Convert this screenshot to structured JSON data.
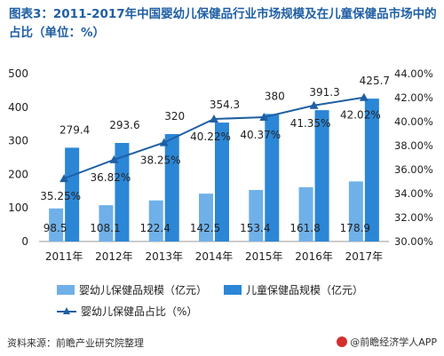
{
  "title": "图表3：2011-2017年中国婴幼儿保健品行业市场规模及在儿童保健品市场中的占比（单位：%）",
  "source": "资料来源：前瞻产业研究院整理",
  "credit": "@前瞻经济学人APP",
  "chart_data": {
    "type": "bar",
    "categories": [
      "2011年",
      "2012年",
      "2013年",
      "2014年",
      "2015年",
      "2016年",
      "2017年"
    ],
    "series": [
      {
        "name": "婴幼儿保健品规模（亿元）",
        "type": "bar",
        "axis": "left",
        "color": "#6fb0e8",
        "values": [
          98.5,
          108.1,
          122.4,
          142.5,
          153.4,
          161.8,
          178.9
        ]
      },
      {
        "name": "儿童保健品规模（亿元）",
        "type": "bar",
        "axis": "left",
        "color": "#2b86d6",
        "values": [
          279.4,
          293.6,
          320,
          354.3,
          380,
          391.3,
          425.7
        ]
      },
      {
        "name": "婴幼儿保健品占比（%）",
        "type": "line",
        "axis": "right",
        "color": "#1f5fa3",
        "values": [
          35.25,
          36.82,
          38.25,
          40.22,
          40.37,
          41.35,
          42.02
        ]
      }
    ],
    "value_labels": {
      "bars_small": [
        "98.5",
        "108.1",
        "122.4",
        "142.5",
        "153.4",
        "161.8",
        "178.9"
      ],
      "bars_large": [
        "279.4",
        "293.6",
        "320",
        "354.3",
        "380",
        "391.3",
        "425.7"
      ],
      "line": [
        "35.25%",
        "36.82%",
        "38.25%",
        "40.22%",
        "40.37%",
        "41.35%",
        "42.02%"
      ]
    },
    "y_left": {
      "min": 0,
      "max": 500,
      "ticks": [
        "0",
        "100",
        "200",
        "300",
        "400",
        "500"
      ]
    },
    "y_right": {
      "min": 30,
      "max": 44,
      "ticks": [
        "30.00%",
        "32.00%",
        "34.00%",
        "36.00%",
        "38.00%",
        "40.00%",
        "42.00%",
        "44.00%"
      ]
    },
    "grid": false,
    "legend_position": "bottom"
  }
}
